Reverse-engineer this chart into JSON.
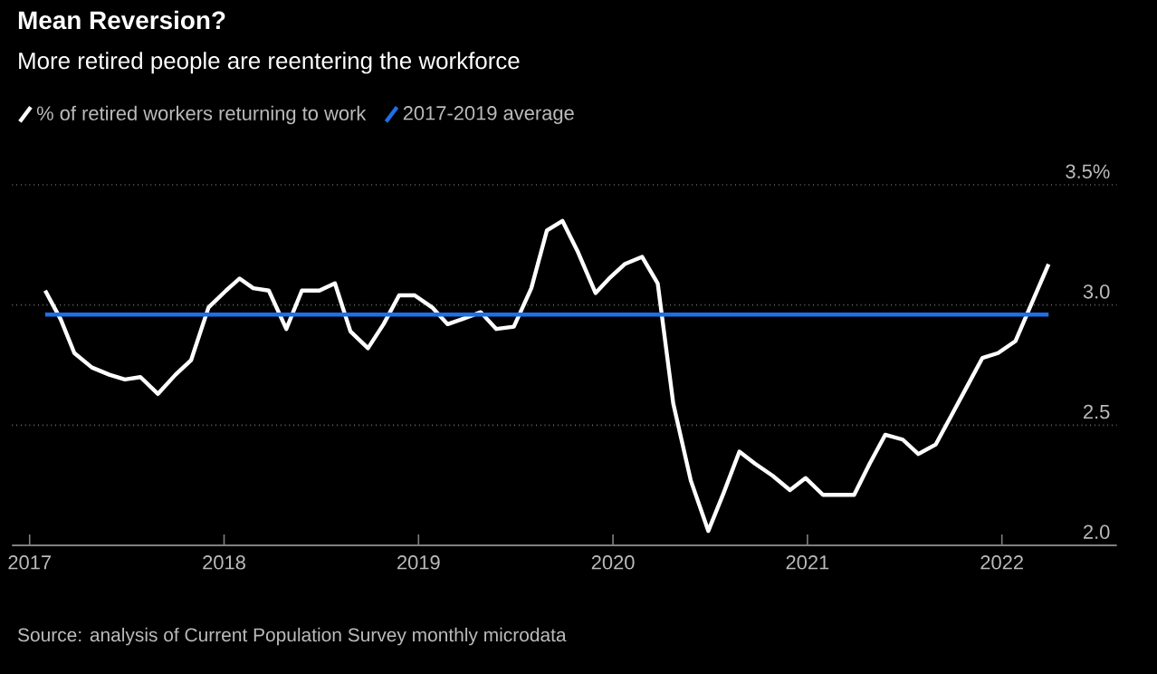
{
  "chart_data": {
    "type": "line",
    "title": "Mean Reversion?",
    "subtitle": "More retired people are reentering the workforce",
    "x": [
      2017.08,
      2017.16,
      2017.23,
      2017.32,
      2017.41,
      2017.49,
      2017.57,
      2017.66,
      2017.75,
      2017.83,
      2017.92,
      2018.01,
      2018.08,
      2018.15,
      2018.23,
      2018.32,
      2018.4,
      2018.49,
      2018.57,
      2018.65,
      2018.74,
      2018.82,
      2018.9,
      2018.98,
      2019.07,
      2019.15,
      2019.22,
      2019.32,
      2019.4,
      2019.49,
      2019.58,
      2019.66,
      2019.74,
      2019.82,
      2019.91,
      2019.98,
      2020.06,
      2020.15,
      2020.23,
      2020.31,
      2020.4,
      2020.49,
      2020.57,
      2020.65,
      2020.73,
      2020.82,
      2020.91,
      2020.99,
      2021.08,
      2021.16,
      2021.24,
      2021.32,
      2021.4,
      2021.49,
      2021.57,
      2021.66,
      2021.74,
      2021.82,
      2021.9,
      2021.98,
      2022.07,
      2022.16,
      2022.24
    ],
    "series": [
      {
        "name": "% of retired workers returning to work",
        "color": "#ffffff",
        "values": [
          3.06,
          2.94,
          2.8,
          2.74,
          2.71,
          2.69,
          2.7,
          2.63,
          2.71,
          2.77,
          2.99,
          3.06,
          3.11,
          3.07,
          3.06,
          2.9,
          3.06,
          3.06,
          3.09,
          2.89,
          2.82,
          2.92,
          3.04,
          3.04,
          2.99,
          2.92,
          2.94,
          2.97,
          2.9,
          2.91,
          3.07,
          3.31,
          3.35,
          3.22,
          3.05,
          3.11,
          3.17,
          3.2,
          3.09,
          2.59,
          2.27,
          2.06,
          2.22,
          2.39,
          2.34,
          2.29,
          2.23,
          2.28,
          2.21,
          2.21,
          2.21,
          2.34,
          2.46,
          2.44,
          2.38,
          2.42,
          2.54,
          2.66,
          2.78,
          2.8,
          2.85,
          3.02,
          3.17
        ]
      },
      {
        "name": "2017-2019 average",
        "color": "#1f6fe8",
        "x": [
          2017.08,
          2022.24
        ],
        "values": [
          2.96,
          2.96
        ]
      }
    ],
    "xlim": [
      2016.91,
      2022.59
    ],
    "ylim": [
      2.0,
      3.5
    ],
    "xticks": [
      2017,
      2018,
      2019,
      2020,
      2021,
      2022
    ],
    "yticks": [
      {
        "value": 2.0,
        "label": "2.0"
      },
      {
        "value": 2.5,
        "label": "2.5"
      },
      {
        "value": 3.0,
        "label": "3.0"
      },
      {
        "value": 3.5,
        "label": "3.5%"
      }
    ],
    "grid": "y",
    "legend": "top left",
    "marker": "none",
    "line_style": "solid",
    "annotations": [
      "Source: analysis of Current Population Survey monthly microdata"
    ]
  }
}
